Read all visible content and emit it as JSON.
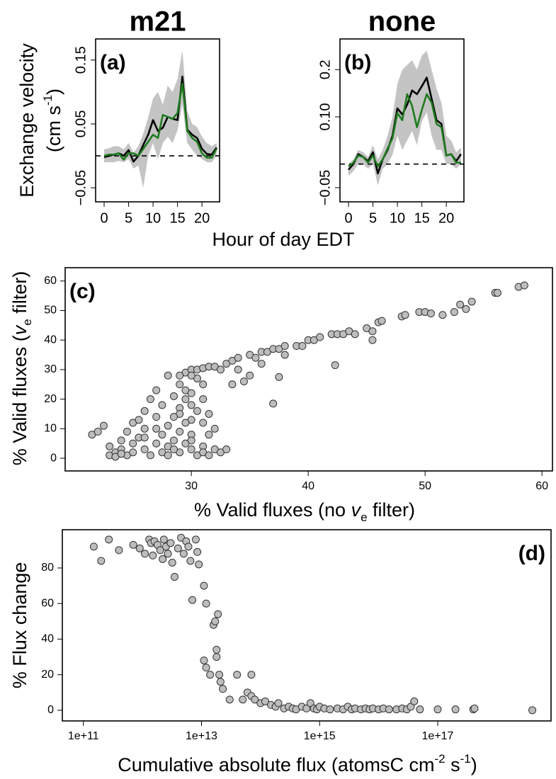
{
  "chart_data": [
    {
      "type": "line",
      "title": "m21",
      "panel_label": "(a)",
      "y_label": "Exchange velocity",
      "y_label_unit": [
        "(cm s",
        "-1",
        ")"
      ],
      "x_label": "Hour of day EDT",
      "x": [
        0,
        1,
        2,
        3,
        4,
        5,
        6,
        7,
        8,
        9,
        10,
        11,
        12,
        13,
        14,
        15,
        16,
        17,
        18,
        19,
        20,
        21,
        22,
        23
      ],
      "series": [
        {
          "color": "#000000",
          "values": [
            -0.002,
            0,
            0.002,
            0.004,
            0,
            0.009,
            -0.009,
            0,
            0.017,
            0.033,
            0.056,
            0.039,
            0.044,
            0.061,
            0.058,
            0.056,
            0.124,
            0.041,
            0.033,
            0.028,
            0.011,
            0.003,
            0.002,
            0.013
          ]
        },
        {
          "color": "#1e7b1e",
          "values": [
            0,
            0.002,
            0.002,
            0.004,
            -0.006,
            0.004,
            0.004,
            0,
            0.011,
            0.022,
            0.033,
            0.028,
            0.064,
            0.061,
            0.058,
            0.067,
            0.113,
            0.039,
            0.028,
            0.022,
            0.004,
            -0.003,
            -0.003,
            0.011
          ]
        }
      ],
      "band_upper": [
        0.01,
        0.012,
        0.015,
        0.015,
        0.01,
        0.02,
        0.005,
        0.015,
        0.035,
        0.06,
        0.09,
        0.1,
        0.08,
        0.11,
        0.1,
        0.12,
        0.165,
        0.07,
        0.05,
        0.045,
        0.03,
        0.02,
        0.015,
        0.02
      ],
      "band_lower": [
        -0.01,
        -0.01,
        -0.01,
        -0.008,
        -0.01,
        -0.005,
        -0.02,
        -0.015,
        -0.05,
        0,
        0.02,
        -0.005,
        0.02,
        0.03,
        0.02,
        0.04,
        0.08,
        0.02,
        0.01,
        0,
        -0.005,
        -0.01,
        -0.01,
        0
      ],
      "band_color": "#c4c4c4",
      "reference_line": 0,
      "xlim": [
        -1.74,
        23.6
      ],
      "ylim": [
        -0.072,
        0.183
      ],
      "xticks": [
        0,
        5,
        10,
        15,
        20
      ],
      "yticks": [
        {
          "value": -0.05,
          "label": "−0.05"
        },
        0.05,
        0.15
      ]
    },
    {
      "type": "line",
      "title": "none",
      "panel_label": "(b)",
      "x": [
        0,
        1,
        2,
        3,
        4,
        5,
        6,
        7,
        8,
        9,
        10,
        11,
        12,
        13,
        14,
        15,
        16,
        17,
        18,
        19,
        20,
        21,
        22,
        23
      ],
      "series": [
        {
          "color": "#000000",
          "values": [
            -0.012,
            0,
            0.021,
            0.015,
            0.006,
            0.025,
            -0.02,
            0.01,
            0.03,
            0.06,
            0.118,
            0.105,
            0.126,
            0.156,
            0.148,
            0.165,
            0.183,
            0.138,
            0.093,
            0.085,
            0.018,
            0.021,
            0.006,
            0.021
          ]
        },
        {
          "color": "#1e7b1e",
          "values": [
            -0.005,
            0.003,
            0.018,
            0.015,
            0.003,
            0.018,
            -0.005,
            0.01,
            0.033,
            0.055,
            0.108,
            0.093,
            0.148,
            0.123,
            0.078,
            0.115,
            0.148,
            0.13,
            0.085,
            0.078,
            0.018,
            0.021,
            0.003,
            0.003
          ]
        }
      ],
      "band_upper": [
        0,
        0.01,
        0.03,
        0.025,
        0.015,
        0.04,
        0.01,
        0.03,
        0.06,
        0.1,
        0.17,
        0.2,
        0.21,
        0.22,
        0.2,
        0.23,
        0.24,
        0.2,
        0.16,
        0.13,
        0.06,
        0.05,
        0.025,
        0.035
      ],
      "band_lower": [
        -0.025,
        -0.015,
        0,
        0,
        -0.01,
        0,
        -0.045,
        -0.01,
        0,
        0.02,
        0.06,
        0.03,
        0.05,
        0.07,
        0.04,
        0.09,
        0.11,
        0.06,
        0.03,
        0.03,
        0,
        0,
        -0.01,
        0
      ],
      "band_color": "#c4c4c4",
      "reference_line": 0,
      "xlim": [
        -1.74,
        23.6
      ],
      "ylim": [
        -0.08,
        0.265
      ],
      "xticks": [
        0,
        5,
        10,
        15,
        20
      ],
      "yticks": [
        {
          "value": -0.05,
          "label": "−0.05"
        },
        {
          "value": 0.1,
          "label": "0.10"
        },
        0.2
      ]
    },
    {
      "type": "scatter",
      "panel_label": "(c)",
      "y_label": [
        "% Valid fluxes (",
        "v",
        "e",
        " filter)"
      ],
      "x_label": [
        "% Valid fluxes (no ",
        "v",
        "e",
        " filter)"
      ],
      "x": [
        29.5,
        30,
        30.5,
        31,
        31.5,
        32,
        32.5,
        33,
        33.5,
        34,
        35,
        35.5,
        36,
        36.5,
        37,
        37.5,
        38,
        39,
        39.5,
        40,
        40.5,
        41,
        42,
        42.5,
        43,
        43.5,
        44,
        45,
        45.5,
        45.5,
        46,
        46.3,
        48,
        48.3,
        49.5,
        50,
        50.5,
        51.5,
        52.5,
        53,
        53.5,
        54,
        56,
        56.2,
        58,
        58.5,
        42.3,
        37,
        37.5,
        34,
        35,
        33.5,
        34.5,
        36,
        38,
        29,
        29.5,
        30,
        29.5,
        30,
        29,
        30.5,
        29,
        30,
        30.5,
        31,
        30,
        29,
        28.5,
        28,
        31,
        31.5,
        31,
        32,
        31.5,
        21.5,
        22,
        22.5,
        23,
        23,
        23.5,
        24,
        24,
        24.5,
        24.5,
        25,
        25,
        25,
        25.5,
        25.5,
        26,
        26,
        26,
        26.5,
        26.5,
        27,
        27,
        27,
        27.5,
        27.5,
        27.5,
        28,
        28,
        28,
        28.5,
        28.5,
        29,
        29,
        29.5,
        30,
        30,
        30.5,
        31,
        31,
        31.5,
        32,
        32.5,
        33,
        23.5,
        24,
        26,
        27,
        28.5,
        29.5,
        30
      ],
      "values": [
        29,
        30,
        30,
        30.5,
        31,
        31,
        30,
        32,
        33,
        34,
        35,
        34,
        36,
        36,
        37,
        37,
        38,
        38,
        38,
        40,
        40,
        41,
        42,
        42,
        42,
        43,
        42,
        44,
        43,
        40,
        46,
        46.5,
        48,
        48.5,
        49.5,
        49.5,
        49,
        48.5,
        49.5,
        52,
        50.5,
        53,
        56,
        56,
        58,
        58.5,
        31.5,
        18.5,
        27.5,
        30,
        28,
        25,
        26,
        32,
        35,
        25,
        23,
        22,
        20,
        18,
        17,
        16,
        15,
        13,
        27,
        25,
        28,
        28,
        21,
        28,
        20,
        15,
        12,
        10,
        8,
        8,
        9,
        11,
        4,
        1,
        2,
        3,
        6,
        1,
        9,
        12,
        5,
        2,
        7,
        13,
        3,
        10,
        16,
        20,
        1,
        5,
        14,
        23,
        8,
        2,
        18,
        11,
        4,
        1,
        6,
        14,
        9,
        2,
        5,
        3,
        8,
        1,
        4,
        2,
        1,
        3,
        2,
        3,
        0.5,
        1.5,
        7,
        10,
        3,
        12,
        6
      ],
      "color": "#bdbdbd",
      "edge_color": "#333333",
      "xlim": [
        19.2,
        60.9
      ],
      "ylim": [
        -4.3,
        64.5
      ],
      "xticks": [
        30,
        40,
        50,
        60
      ],
      "yticks": [
        0,
        10,
        20,
        30,
        40,
        50,
        60
      ]
    },
    {
      "type": "scatter",
      "panel_label": "(d)",
      "y_label": "% Flux change",
      "x_label": [
        "Cumulative absolute flux (atomsC cm",
        "-2",
        " s",
        "-1",
        ")"
      ],
      "xscale": "log",
      "x": [
        150000000000.0,
        200000000000.0,
        270000000000.0,
        400000000000.0,
        700000000000.0,
        900000000000.0,
        1100000000000.0,
        1300000000000.0,
        1400000000000.0,
        1500000000000.0,
        1600000000000.0,
        1800000000000.0,
        2000000000000.0,
        2200000000000.0,
        2300000000000.0,
        2500000000000.0,
        2700000000000.0,
        3000000000000.0,
        3200000000000.0,
        3500000000000.0,
        4000000000000.0,
        4500000000000.0,
        5000000000000.0,
        5500000000000.0,
        6000000000000.0,
        6500000000000.0,
        7000000000000.0,
        8000000000000.0,
        8500000000000.0,
        9000000000000.0,
        11000000000000.0,
        12000000000000.0,
        11000000000000.0,
        12000000000000.0,
        14000000000000.0,
        16000000000000.0,
        17000000000000.0,
        18000000000000.0,
        18000000000000.0,
        19000000000000.0,
        20000000000000.0,
        21000000000000.0,
        23000000000000.0,
        30000000000000.0,
        40000000000000.0,
        50000000000000.0,
        60000000000000.0,
        70000000000000.0,
        70000000000000.0,
        80000000000000.0,
        100000000000000.0,
        120000000000000.0,
        150000000000000.0,
        180000000000000.0,
        200000000000000.0,
        250000000000000.0,
        300000000000000.0,
        350000000000000.0,
        400000000000000.0,
        500000000000000.0,
        600000000000000.0,
        700000000000000.0,
        800000000000000.0,
        900000000000000.0,
        1000000000000000.0,
        1200000000000000.0,
        1500000000000000.0,
        2000000000000000.0,
        2500000000000000.0,
        3000000000000000.0,
        3500000000000000.0,
        4000000000000000.0,
        5000000000000000.0,
        6000000000000000.0,
        7000000000000000.0,
        8000000000000000.0,
        1e+16,
        1.2e+16,
        1.5e+16,
        2e+16,
        2.5e+16,
        3e+16,
        3.5e+16,
        4e+16,
        5e+16,
        1e+17,
        2e+17,
        4e+17,
        4.2e+17,
        4e+18
      ],
      "values": [
        92,
        84,
        96,
        90,
        93,
        91,
        88,
        96,
        94,
        87,
        95,
        93,
        90,
        85,
        96,
        92,
        88,
        94,
        83,
        75,
        91,
        97,
        88,
        95,
        92,
        84,
        62,
        96,
        89,
        82,
        70,
        60,
        28,
        24,
        20,
        48,
        50,
        34,
        30,
        54,
        20,
        16,
        12,
        6,
        20,
        6,
        10,
        20,
        8,
        6,
        4,
        5,
        3,
        2,
        4,
        1,
        2,
        1,
        0.5,
        2,
        1,
        4,
        1,
        0.5,
        2,
        1,
        0.5,
        1,
        0.5,
        2,
        0.5,
        1,
        0.5,
        1,
        0.5,
        1,
        0.5,
        1,
        0.5,
        0.5,
        1,
        0.5,
        2,
        5,
        0.5,
        0.5,
        0.5,
        0.5,
        1,
        0
      ],
      "color": "#bdbdbd",
      "edge_color": "#333333",
      "xlim": [
        44000000000.0,
        8.3e+18
      ],
      "ylim": [
        -6,
        101.5
      ],
      "xticks": [
        {
          "value": 100000000000.0,
          "label": "1e+11"
        },
        {
          "value": 10000000000000.0,
          "label": "1e+13"
        },
        {
          "value": 1000000000000000.0,
          "label": "1e+15"
        },
        {
          "value": 1e+17,
          "label": "1e+17"
        }
      ],
      "yticks": [
        0,
        20,
        40,
        60,
        80
      ]
    }
  ]
}
